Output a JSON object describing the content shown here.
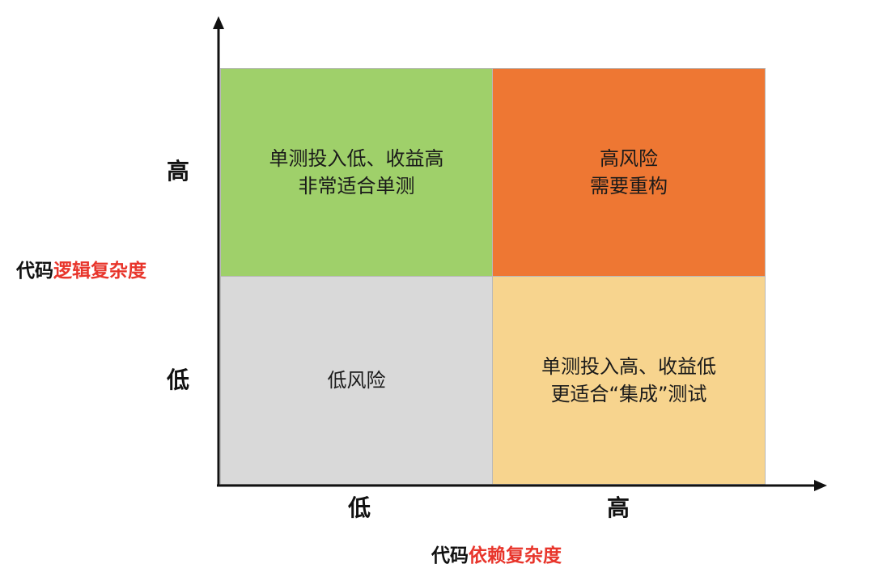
{
  "colors": {
    "top_left": "#9fd06a",
    "top_right": "#ee7733",
    "bottom_left": "#d9d9d9",
    "bottom_right": "#f7d48e",
    "axis": "#111111",
    "highlight": "#e8352b"
  },
  "quadrants": {
    "top_left": [
      "单测投入低、收益高",
      "非常适合单测"
    ],
    "top_right": [
      "高风险",
      "需要重构"
    ],
    "bottom_left": [
      "低风险"
    ],
    "bottom_right": [
      "单测投入高、收益低",
      "更适合“集成”测试"
    ]
  },
  "y_axis": {
    "title_prefix": "代码",
    "title_highlight": "逻辑复杂度",
    "high": "高",
    "low": "低"
  },
  "x_axis": {
    "title_prefix": "代码",
    "title_highlight": "依赖复杂度",
    "low": "低",
    "high": "高"
  }
}
